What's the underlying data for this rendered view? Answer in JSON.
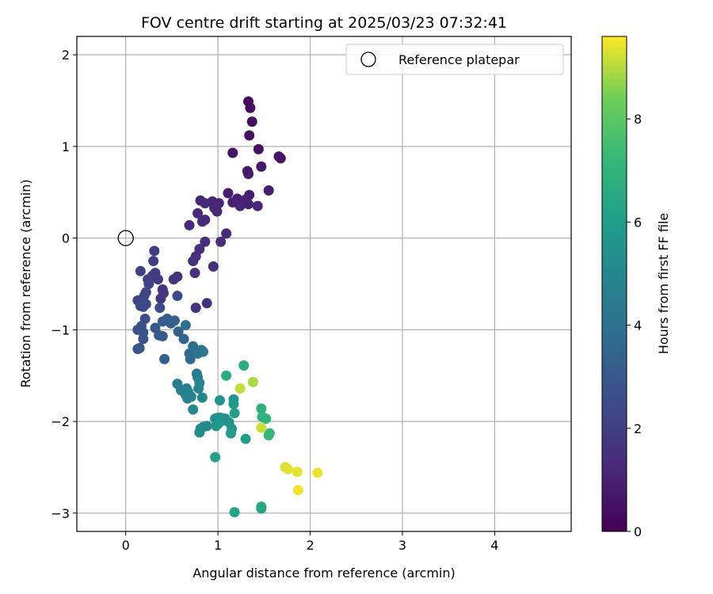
{
  "chart_data": {
    "type": "scatter",
    "title": "FOV centre drift starting at 2025/03/23 07:32:41",
    "xlabel": "Angular distance from reference (arcmin)",
    "ylabel": "Rotation from reference (arcmin)",
    "xlim": [
      -0.53,
      4.83
    ],
    "ylim": [
      -3.2,
      2.2
    ],
    "xticks": [
      0,
      1,
      2,
      3,
      4
    ],
    "yticks": [
      -3,
      -2,
      -1,
      0,
      1,
      2
    ],
    "grid": true,
    "legend": {
      "placement": "top-right",
      "entries": [
        "Reference platepar"
      ]
    },
    "reference_point": {
      "name": "Reference platepar",
      "x": 0,
      "y": 0
    },
    "colorbar": {
      "label": "Hours from first FF file",
      "colormap": "viridis",
      "range": [
        0,
        9.6
      ],
      "ticks": [
        0,
        2,
        4,
        6,
        8
      ]
    },
    "points": [
      {
        "x": 1.33,
        "y": 1.49,
        "h": 0.3
      },
      {
        "x": 1.35,
        "y": 1.42,
        "h": 0.35
      },
      {
        "x": 1.37,
        "y": 1.27,
        "h": 0.4
      },
      {
        "x": 1.34,
        "y": 1.12,
        "h": 0.45
      },
      {
        "x": 1.44,
        "y": 0.97,
        "h": 0.5
      },
      {
        "x": 1.16,
        "y": 0.93,
        "h": 0.55
      },
      {
        "x": 1.66,
        "y": 0.89,
        "h": 0.6
      },
      {
        "x": 1.68,
        "y": 0.87,
        "h": 0.65
      },
      {
        "x": 1.47,
        "y": 0.78,
        "h": 0.7
      },
      {
        "x": 1.32,
        "y": 0.73,
        "h": 0.75
      },
      {
        "x": 1.33,
        "y": 0.7,
        "h": 0.8
      },
      {
        "x": 1.55,
        "y": 0.52,
        "h": 0.85
      },
      {
        "x": 1.11,
        "y": 0.49,
        "h": 0.9
      },
      {
        "x": 1.34,
        "y": 0.47,
        "h": 0.92
      },
      {
        "x": 1.21,
        "y": 0.43,
        "h": 0.95
      },
      {
        "x": 1.26,
        "y": 0.4,
        "h": 1.0
      },
      {
        "x": 1.3,
        "y": 0.42,
        "h": 1.0
      },
      {
        "x": 1.16,
        "y": 0.39,
        "h": 1.02
      },
      {
        "x": 1.33,
        "y": 0.37,
        "h": 1.05
      },
      {
        "x": 1.24,
        "y": 0.35,
        "h": 1.08
      },
      {
        "x": 1.43,
        "y": 0.35,
        "h": 1.1
      },
      {
        "x": 0.81,
        "y": 0.41,
        "h": 1.1
      },
      {
        "x": 0.94,
        "y": 0.4,
        "h": 1.12
      },
      {
        "x": 1.01,
        "y": 0.38,
        "h": 1.15
      },
      {
        "x": 0.96,
        "y": 0.33,
        "h": 1.18
      },
      {
        "x": 0.86,
        "y": 0.38,
        "h": 1.2
      },
      {
        "x": 0.99,
        "y": 0.29,
        "h": 1.22
      },
      {
        "x": 0.78,
        "y": 0.27,
        "h": 1.25
      },
      {
        "x": 0.86,
        "y": 0.2,
        "h": 1.28
      },
      {
        "x": 0.83,
        "y": 0.18,
        "h": 1.3
      },
      {
        "x": 0.69,
        "y": 0.14,
        "h": 1.32
      },
      {
        "x": 1.09,
        "y": 0.05,
        "h": 1.35
      },
      {
        "x": 0.86,
        "y": -0.04,
        "h": 1.38
      },
      {
        "x": 1.03,
        "y": -0.04,
        "h": 1.4
      },
      {
        "x": 0.8,
        "y": -0.12,
        "h": 1.42
      },
      {
        "x": 0.76,
        "y": -0.2,
        "h": 1.45
      },
      {
        "x": 0.73,
        "y": -0.25,
        "h": 1.48
      },
      {
        "x": 0.95,
        "y": -0.31,
        "h": 1.5
      },
      {
        "x": 0.75,
        "y": -0.38,
        "h": 1.52
      },
      {
        "x": 0.88,
        "y": -0.71,
        "h": 1.55
      },
      {
        "x": 0.76,
        "y": -0.76,
        "h": 1.58
      },
      {
        "x": 0.56,
        "y": -0.42,
        "h": 1.6
      },
      {
        "x": 0.52,
        "y": -0.45,
        "h": 1.65
      },
      {
        "x": 0.4,
        "y": -0.56,
        "h": 1.7
      },
      {
        "x": 0.41,
        "y": -0.6,
        "h": 1.72
      },
      {
        "x": 0.38,
        "y": -0.66,
        "h": 1.75
      },
      {
        "x": 0.35,
        "y": -0.45,
        "h": 1.8
      },
      {
        "x": 0.29,
        "y": -0.41,
        "h": 1.85
      },
      {
        "x": 0.32,
        "y": -0.38,
        "h": 1.9
      },
      {
        "x": 0.3,
        "y": -0.25,
        "h": 1.95
      },
      {
        "x": 0.31,
        "y": -0.14,
        "h": 2.0
      },
      {
        "x": 0.16,
        "y": -0.36,
        "h": 2.05
      },
      {
        "x": 0.24,
        "y": -0.45,
        "h": 2.1
      },
      {
        "x": 0.25,
        "y": -0.5,
        "h": 2.15
      },
      {
        "x": 0.22,
        "y": -0.59,
        "h": 2.2
      },
      {
        "x": 0.2,
        "y": -0.63,
        "h": 2.25
      },
      {
        "x": 0.13,
        "y": -0.68,
        "h": 2.3
      },
      {
        "x": 0.22,
        "y": -0.72,
        "h": 2.35
      },
      {
        "x": 0.19,
        "y": -0.75,
        "h": 2.4
      },
      {
        "x": 0.16,
        "y": -0.74,
        "h": 2.45
      },
      {
        "x": 0.56,
        "y": -0.63,
        "h": 2.5
      },
      {
        "x": 0.37,
        "y": -0.76,
        "h": 2.55
      },
      {
        "x": 0.21,
        "y": -0.88,
        "h": 2.6
      },
      {
        "x": 0.17,
        "y": -0.96,
        "h": 2.65
      },
      {
        "x": 0.13,
        "y": -1.0,
        "h": 2.7
      },
      {
        "x": 0.19,
        "y": -1.03,
        "h": 2.75
      },
      {
        "x": 0.19,
        "y": -1.1,
        "h": 2.8
      },
      {
        "x": 0.15,
        "y": -1.2,
        "h": 2.85
      },
      {
        "x": 0.13,
        "y": -1.21,
        "h": 2.9
      },
      {
        "x": 0.32,
        "y": -0.98,
        "h": 2.95
      },
      {
        "x": 0.36,
        "y": -1.06,
        "h": 3.0
      },
      {
        "x": 0.4,
        "y": -1.07,
        "h": 3.05
      },
      {
        "x": 0.4,
        "y": -0.91,
        "h": 3.1
      },
      {
        "x": 0.45,
        "y": -0.88,
        "h": 3.15
      },
      {
        "x": 0.49,
        "y": -0.93,
        "h": 3.2
      },
      {
        "x": 0.53,
        "y": -0.9,
        "h": 3.25
      },
      {
        "x": 0.42,
        "y": -1.32,
        "h": 3.3
      },
      {
        "x": 0.57,
        "y": -1.02,
        "h": 3.4
      },
      {
        "x": 0.63,
        "y": -1.1,
        "h": 3.5
      },
      {
        "x": 0.69,
        "y": -1.26,
        "h": 3.6
      },
      {
        "x": 0.7,
        "y": -1.32,
        "h": 3.7
      },
      {
        "x": 0.74,
        "y": -1.22,
        "h": 3.8
      },
      {
        "x": 0.73,
        "y": -1.18,
        "h": 3.9
      },
      {
        "x": 0.65,
        "y": -0.95,
        "h": 4.0
      },
      {
        "x": 0.78,
        "y": -1.26,
        "h": 4.1
      },
      {
        "x": 0.82,
        "y": -1.22,
        "h": 4.2
      },
      {
        "x": 0.84,
        "y": -1.24,
        "h": 4.3
      },
      {
        "x": 0.77,
        "y": -1.48,
        "h": 4.4
      },
      {
        "x": 0.78,
        "y": -1.52,
        "h": 4.5
      },
      {
        "x": 0.66,
        "y": -1.64,
        "h": 4.55
      },
      {
        "x": 0.56,
        "y": -1.59,
        "h": 4.6
      },
      {
        "x": 0.6,
        "y": -1.66,
        "h": 4.65
      },
      {
        "x": 0.65,
        "y": -1.71,
        "h": 4.7
      },
      {
        "x": 0.68,
        "y": -1.68,
        "h": 4.75
      },
      {
        "x": 0.67,
        "y": -1.75,
        "h": 4.8
      },
      {
        "x": 0.71,
        "y": -1.73,
        "h": 4.85
      },
      {
        "x": 0.79,
        "y": -1.64,
        "h": 4.9
      },
      {
        "x": 0.8,
        "y": -1.58,
        "h": 4.95
      },
      {
        "x": 0.83,
        "y": -1.74,
        "h": 5.0
      },
      {
        "x": 0.73,
        "y": -1.87,
        "h": 5.05
      },
      {
        "x": 0.81,
        "y": -2.08,
        "h": 5.1
      },
      {
        "x": 0.84,
        "y": -2.06,
        "h": 5.15
      },
      {
        "x": 0.88,
        "y": -2.05,
        "h": 5.2
      },
      {
        "x": 0.8,
        "y": -2.12,
        "h": 5.25
      },
      {
        "x": 0.97,
        "y": -1.97,
        "h": 5.3
      },
      {
        "x": 1.0,
        "y": -1.96,
        "h": 5.35
      },
      {
        "x": 1.03,
        "y": -1.96,
        "h": 5.4
      },
      {
        "x": 1.05,
        "y": -1.99,
        "h": 5.45
      },
      {
        "x": 1.08,
        "y": -1.97,
        "h": 5.5
      },
      {
        "x": 1.02,
        "y": -1.77,
        "h": 5.55
      },
      {
        "x": 1.12,
        "y": -2.01,
        "h": 5.6
      },
      {
        "x": 1.15,
        "y": -2.08,
        "h": 5.65
      },
      {
        "x": 1.17,
        "y": -1.76,
        "h": 5.7
      },
      {
        "x": 1.17,
        "y": -1.81,
        "h": 5.75
      },
      {
        "x": 0.98,
        "y": -2.05,
        "h": 5.8
      },
      {
        "x": 1.01,
        "y": -2.02,
        "h": 5.85
      },
      {
        "x": 1.14,
        "y": -2.13,
        "h": 5.9
      },
      {
        "x": 1.3,
        "y": -2.19,
        "h": 6.0
      },
      {
        "x": 1.18,
        "y": -1.91,
        "h": 6.1
      },
      {
        "x": 0.97,
        "y": -2.39,
        "h": 6.2
      },
      {
        "x": 1.18,
        "y": -2.99,
        "h": 6.3
      },
      {
        "x": 1.47,
        "y": -2.95,
        "h": 6.4
      },
      {
        "x": 1.47,
        "y": -2.93,
        "h": 6.5
      },
      {
        "x": 1.09,
        "y": -1.5,
        "h": 6.6
      },
      {
        "x": 1.28,
        "y": -1.39,
        "h": 6.7
      },
      {
        "x": 1.47,
        "y": -1.86,
        "h": 6.8
      },
      {
        "x": 1.48,
        "y": -1.95,
        "h": 6.9
      },
      {
        "x": 1.52,
        "y": -1.97,
        "h": 7.0
      },
      {
        "x": 1.56,
        "y": -2.13,
        "h": 7.1
      },
      {
        "x": 1.55,
        "y": -2.15,
        "h": 7.2
      },
      {
        "x": 1.38,
        "y": -1.57,
        "h": 8.9
      },
      {
        "x": 1.24,
        "y": -1.64,
        "h": 9.1
      },
      {
        "x": 1.47,
        "y": -2.07,
        "h": 9.2
      },
      {
        "x": 1.73,
        "y": -2.5,
        "h": 9.3
      },
      {
        "x": 1.76,
        "y": -2.52,
        "h": 9.35
      },
      {
        "x": 1.86,
        "y": -2.55,
        "h": 9.4
      },
      {
        "x": 2.08,
        "y": -2.56,
        "h": 9.45
      },
      {
        "x": 1.87,
        "y": -2.75,
        "h": 9.5
      }
    ]
  }
}
